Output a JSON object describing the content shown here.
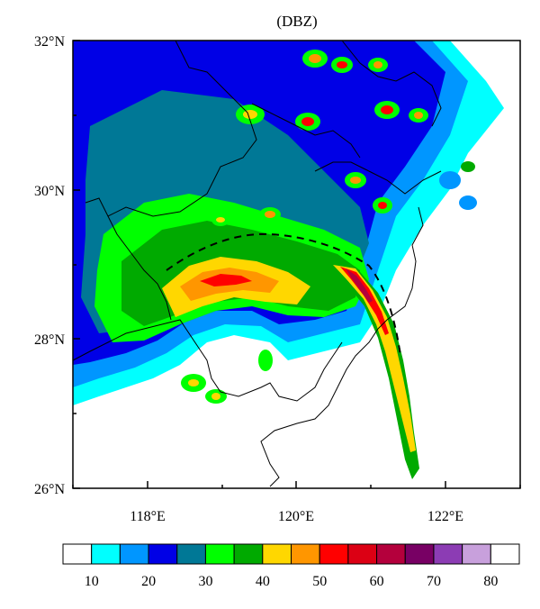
{
  "title": "(DBZ)",
  "lat_ticks": [
    "32°N",
    "30°N",
    "28°N",
    "26°N"
  ],
  "lon_ticks": [
    "118°E",
    "120°E",
    "122°E"
  ],
  "colorbar": {
    "colors": [
      "#ffffff",
      "#00ffff",
      "#0096ff",
      "#0000e6",
      "#007896",
      "#00ff00",
      "#00aa00",
      "#ffd700",
      "#ff9600",
      "#ff0000",
      "#dc0014",
      "#b4003c",
      "#780064",
      "#8c3cb4",
      "#c8a0dc",
      "#ffffff"
    ],
    "labels": [
      "10",
      "20",
      "30",
      "40",
      "50",
      "60",
      "70",
      "80"
    ]
  },
  "map": {
    "lat_range": [
      26,
      32
    ],
    "lon_range": [
      117,
      123
    ]
  }
}
